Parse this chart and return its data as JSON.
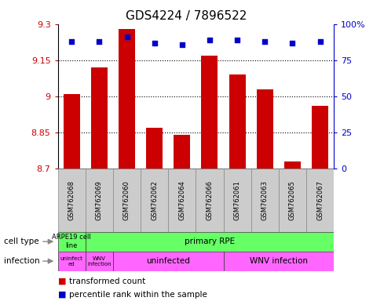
{
  "title": "GDS4224 / 7896522",
  "samples": [
    "GSM762068",
    "GSM762069",
    "GSM762060",
    "GSM762062",
    "GSM762064",
    "GSM762066",
    "GSM762061",
    "GSM762063",
    "GSM762065",
    "GSM762067"
  ],
  "transformed_counts": [
    9.01,
    9.12,
    9.28,
    8.87,
    8.84,
    9.17,
    9.09,
    9.03,
    8.73,
    8.96
  ],
  "percentile_ranks": [
    88,
    88,
    91,
    87,
    86,
    89,
    89,
    88,
    87,
    88
  ],
  "ylim_left": [
    8.7,
    9.3
  ],
  "ylim_right": [
    0,
    100
  ],
  "yticks_left": [
    8.7,
    8.85,
    9.0,
    9.15,
    9.3
  ],
  "yticks_right": [
    0,
    25,
    50,
    75,
    100
  ],
  "ytick_labels_left": [
    "8.7",
    "8.85",
    "9",
    "9.15",
    "9.3"
  ],
  "ytick_labels_right": [
    "0",
    "25",
    "50",
    "75",
    "100%"
  ],
  "bar_color": "#cc0000",
  "dot_color": "#0000cc",
  "dotted_grid_lines": [
    8.85,
    9.0,
    9.15
  ],
  "background_color": "#ffffff",
  "left_axis_color": "#cc0000",
  "right_axis_color": "#0000cc",
  "title_fontsize": 11,
  "cell_type_green": "#66ff66",
  "infection_pink": "#ff66ff",
  "sample_bg": "#cccccc"
}
